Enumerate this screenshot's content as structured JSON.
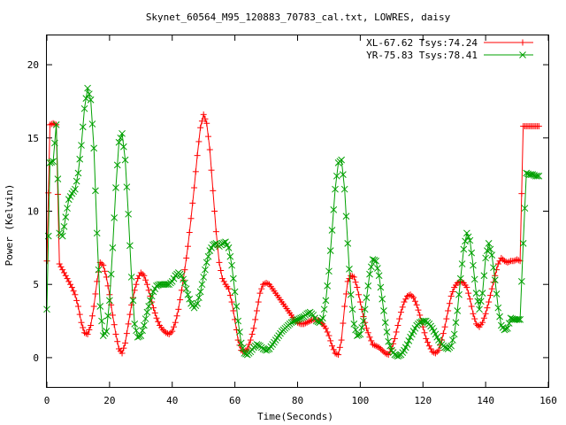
{
  "chart_data": {
    "type": "line",
    "title": "Skynet_60564_M95_120883_70783_cal.txt, LOWRES, daisy",
    "xlabel": "Time(Seconds)",
    "ylabel": "Power (Kelvin)",
    "xlim": [
      0,
      160
    ],
    "ylim": [
      -2,
      22
    ],
    "xticks": [
      0,
      20,
      40,
      60,
      80,
      100,
      120,
      140,
      160
    ],
    "yticks": [
      0,
      5,
      10,
      15,
      20
    ],
    "grid": false,
    "legend_position": "top-right",
    "series": [
      {
        "name": "XL-67.62 Tsys:74.24",
        "color": "#ff0000",
        "marker": "plus",
        "x": [
          0,
          1,
          2,
          3,
          4,
          5,
          6,
          7,
          8,
          9,
          10,
          11,
          12,
          13,
          14,
          15,
          16,
          17,
          18,
          19,
          20,
          21,
          22,
          23,
          24,
          25,
          26,
          27,
          28,
          29,
          30,
          31,
          32,
          33,
          34,
          35,
          36,
          37,
          38,
          39,
          40,
          41,
          42,
          43,
          44,
          45,
          46,
          47,
          48,
          49,
          50,
          51,
          52,
          53,
          54,
          55,
          56,
          57,
          58,
          59,
          60,
          61,
          62,
          63,
          64,
          65,
          66,
          67,
          68,
          69,
          70,
          71,
          72,
          73,
          74,
          75,
          76,
          77,
          78,
          79,
          80,
          81,
          82,
          83,
          84,
          85,
          86,
          87,
          88,
          89,
          90,
          91,
          92,
          93,
          94,
          95,
          96,
          97,
          98,
          99,
          100,
          101,
          102,
          103,
          104,
          105,
          106,
          107,
          108,
          109,
          110,
          111,
          112,
          113,
          114,
          115,
          116,
          117,
          118,
          119,
          120,
          121,
          122,
          123,
          124,
          125,
          126,
          127,
          128,
          129,
          130,
          131,
          132,
          133,
          134,
          135,
          136,
          137,
          138,
          139,
          140,
          141,
          142,
          143,
          144,
          145,
          146,
          147,
          148,
          149,
          150,
          151,
          152,
          153,
          154,
          155,
          156,
          157
        ],
        "y": [
          6.6,
          15.9,
          16.0,
          15.9,
          6.4,
          6.0,
          5.6,
          5.2,
          4.8,
          4.3,
          3.5,
          2.4,
          1.7,
          1.6,
          2.2,
          3.5,
          5.2,
          6.5,
          6.3,
          5.5,
          4.3,
          2.9,
          1.6,
          0.6,
          0.3,
          1.0,
          2.3,
          3.6,
          4.6,
          5.4,
          5.8,
          5.6,
          5.0,
          4.2,
          3.4,
          2.7,
          2.2,
          1.9,
          1.7,
          1.6,
          1.8,
          2.4,
          3.3,
          4.6,
          6.0,
          7.6,
          9.5,
          11.6,
          13.8,
          15.7,
          16.6,
          16.0,
          14.2,
          11.4,
          8.6,
          6.5,
          5.4,
          5.0,
          4.7,
          3.8,
          2.6,
          1.2,
          0.5,
          0.4,
          0.6,
          1.2,
          2.0,
          3.2,
          4.4,
          5.0,
          5.1,
          5.0,
          4.7,
          4.4,
          4.1,
          3.8,
          3.5,
          3.2,
          2.9,
          2.6,
          2.4,
          2.3,
          2.3,
          2.4,
          2.5,
          2.6,
          2.6,
          2.5,
          2.3,
          2.0,
          1.5,
          0.8,
          0.3,
          0.2,
          1.2,
          3.5,
          5.2,
          5.6,
          5.5,
          4.8,
          3.8,
          2.8,
          2.0,
          1.4,
          0.9,
          0.8,
          0.7,
          0.5,
          0.3,
          0.2,
          0.6,
          1.3,
          2.2,
          3.1,
          3.8,
          4.2,
          4.3,
          4.1,
          3.6,
          2.9,
          2.1,
          1.3,
          0.8,
          0.4,
          0.3,
          0.5,
          1.2,
          2.1,
          3.2,
          4.2,
          4.8,
          5.1,
          5.2,
          5.1,
          4.8,
          4.0,
          3.0,
          2.3,
          2.1,
          2.4,
          3.0,
          3.8,
          4.7,
          5.6,
          6.4,
          6.8,
          6.6,
          6.5,
          6.6,
          6.6,
          6.7,
          6.6,
          15.8,
          15.8,
          15.8,
          15.8,
          15.8,
          15.8
        ]
      },
      {
        "name": "YR-75.83 Tsys:78.41",
        "color": "#00a000",
        "marker": "cross",
        "x": [
          0,
          1,
          2,
          3,
          4,
          5,
          6,
          7,
          8,
          9,
          10,
          11,
          12,
          13,
          14,
          15,
          16,
          17,
          18,
          19,
          20,
          21,
          22,
          23,
          24,
          25,
          26,
          27,
          28,
          29,
          30,
          31,
          32,
          33,
          34,
          35,
          36,
          37,
          38,
          39,
          40,
          41,
          42,
          43,
          44,
          45,
          46,
          47,
          48,
          49,
          50,
          51,
          52,
          53,
          54,
          55,
          56,
          57,
          58,
          59,
          60,
          61,
          62,
          63,
          64,
          65,
          66,
          67,
          68,
          69,
          70,
          71,
          72,
          73,
          74,
          75,
          76,
          77,
          78,
          79,
          80,
          81,
          82,
          83,
          84,
          85,
          86,
          87,
          88,
          89,
          90,
          91,
          92,
          93,
          94,
          95,
          96,
          97,
          98,
          99,
          100,
          101,
          102,
          103,
          104,
          105,
          106,
          107,
          108,
          109,
          110,
          111,
          112,
          113,
          114,
          115,
          116,
          117,
          118,
          119,
          120,
          121,
          122,
          123,
          124,
          125,
          126,
          127,
          128,
          129,
          130,
          131,
          132,
          133,
          134,
          135,
          136,
          137,
          138,
          139,
          140,
          141,
          142,
          143,
          144,
          145,
          146,
          147,
          148,
          149,
          150,
          151,
          152,
          153,
          154,
          155,
          156,
          157
        ],
        "y": [
          3.3,
          13.3,
          13.4,
          15.9,
          8.5,
          8.3,
          9.6,
          10.8,
          11.2,
          11.5,
          12.6,
          14.5,
          17.0,
          18.4,
          17.6,
          14.3,
          8.5,
          3.5,
          1.5,
          1.8,
          3.9,
          7.5,
          11.6,
          14.7,
          15.3,
          13.5,
          9.8,
          5.5,
          2.3,
          1.4,
          1.5,
          2.2,
          3.1,
          3.9,
          4.5,
          4.9,
          5.0,
          5.0,
          5.0,
          5.0,
          5.2,
          5.6,
          5.8,
          5.6,
          5.1,
          4.3,
          3.7,
          3.4,
          3.7,
          4.5,
          5.5,
          6.5,
          7.3,
          7.7,
          7.8,
          7.6,
          7.8,
          7.9,
          7.5,
          6.3,
          4.5,
          2.5,
          1.0,
          0.3,
          0.2,
          0.4,
          0.7,
          0.9,
          0.8,
          0.6,
          0.5,
          0.6,
          0.9,
          1.2,
          1.5,
          1.8,
          2.0,
          2.2,
          2.4,
          2.5,
          2.6,
          2.7,
          2.8,
          3.0,
          3.1,
          2.9,
          2.5,
          2.4,
          2.7,
          3.9,
          5.9,
          8.7,
          11.5,
          13.3,
          13.5,
          11.5,
          7.8,
          4.3,
          2.3,
          1.5,
          1.6,
          2.5,
          4.1,
          5.7,
          6.7,
          6.6,
          5.6,
          4.0,
          2.4,
          1.1,
          0.5,
          0.2,
          0.1,
          0.2,
          0.5,
          0.9,
          1.4,
          1.8,
          2.2,
          2.4,
          2.5,
          2.5,
          2.3,
          2.0,
          1.6,
          1.2,
          0.9,
          0.7,
          0.6,
          0.8,
          1.6,
          3.2,
          5.4,
          7.4,
          8.5,
          8.0,
          6.3,
          4.4,
          3.3,
          4.4,
          6.8,
          7.8,
          7.0,
          5.3,
          3.4,
          2.2,
          1.9,
          2.0,
          2.7,
          2.6,
          2.6,
          2.6,
          7.8,
          12.6,
          12.5,
          12.5,
          12.4,
          12.4
        ]
      }
    ]
  }
}
